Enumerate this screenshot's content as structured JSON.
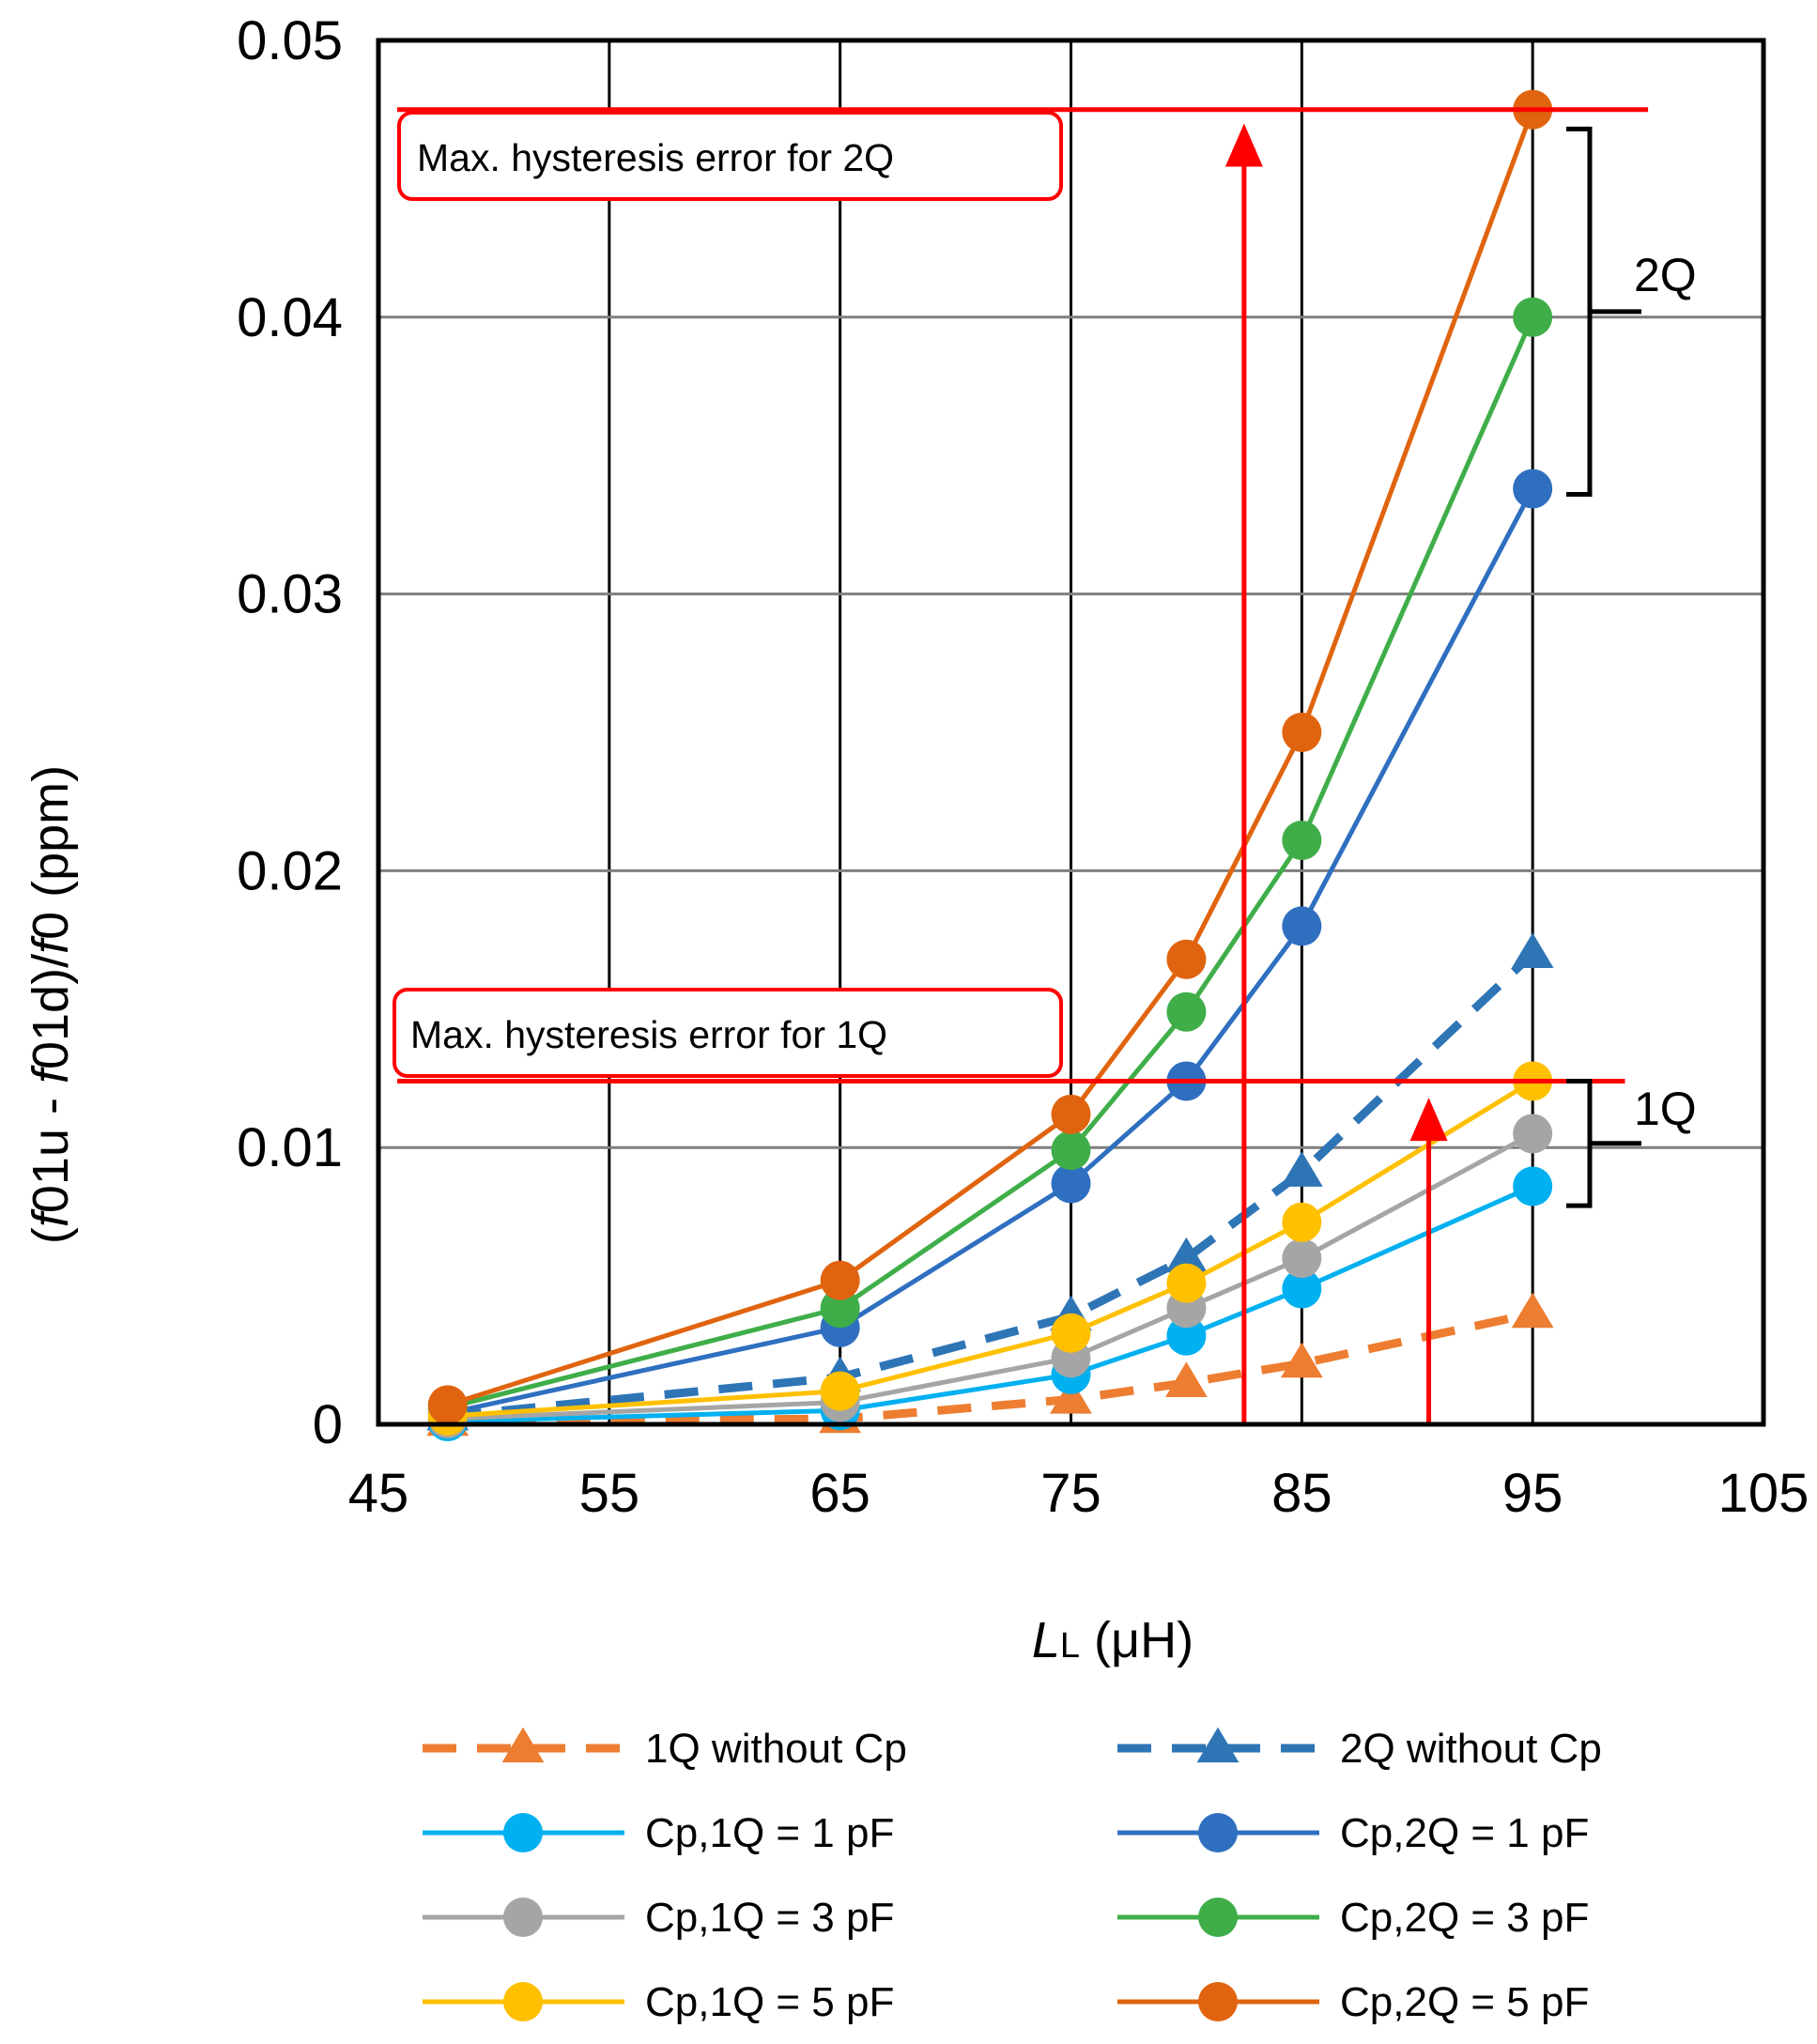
{
  "chart_data": {
    "type": "line",
    "title": "",
    "xlabel": {
      "main": "L",
      "sub": "L",
      "unit": " (μH)"
    },
    "ylabel": {
      "p1": "(",
      "f1": "f",
      "p2": "01u - ",
      "f2": "f",
      "p3": "01d)/",
      "f3": "f",
      "p4": "0 (ppm)"
    },
    "xlim": [
      45,
      105
    ],
    "ylim": [
      0,
      0.05
    ],
    "x_ticks": [
      45,
      55,
      65,
      75,
      85,
      95,
      105
    ],
    "x_tick_labels": [
      "45",
      "55",
      "65",
      "75",
      "85",
      "95",
      "105"
    ],
    "y_ticks": [
      0,
      0.01,
      0.02,
      0.03,
      0.04,
      0.05
    ],
    "y_tick_labels": [
      "0",
      "0.01",
      "0.02",
      "0.03",
      "0.04",
      "0.05"
    ],
    "x_gridlines": [
      55,
      65,
      75,
      85,
      95
    ],
    "y_gridlines": [
      0.01,
      0.02,
      0.03,
      0.04
    ],
    "series": [
      {
        "name": "1Q without Cp",
        "color": "#ED7D31",
        "marker": "triangle",
        "dashed": true,
        "x": [
          48,
          65,
          75,
          80,
          85,
          95
        ],
        "y": [
          0.0001,
          0.0002,
          0.0009,
          0.0015,
          0.0022,
          0.004
        ]
      },
      {
        "name": "2Q without Cp",
        "color": "#2E75B6",
        "marker": "triangle",
        "dashed": true,
        "x": [
          48,
          65,
          75,
          80,
          85,
          95
        ],
        "y": [
          0.0003,
          0.0017,
          0.0039,
          0.006,
          0.0091,
          0.017
        ]
      },
      {
        "name": "Cp,1Q = 1 pF",
        "color": "#00B0F0",
        "marker": "circle",
        "dashed": false,
        "x": [
          48,
          65,
          75,
          80,
          85,
          95
        ],
        "y": [
          0.0001,
          0.0005,
          0.0018,
          0.0032,
          0.0049,
          0.0086
        ]
      },
      {
        "name": "Cp,2Q = 1 pF",
        "color": "#2F6FC0",
        "marker": "circle",
        "dashed": false,
        "x": [
          48,
          65,
          75,
          80,
          85,
          95
        ],
        "y": [
          0.0004,
          0.0035,
          0.0087,
          0.0124,
          0.018,
          0.0338
        ]
      },
      {
        "name": "Cp,1Q = 3 pF",
        "color": "#A5A5A5",
        "marker": "circle",
        "dashed": false,
        "x": [
          48,
          65,
          75,
          80,
          85,
          95
        ],
        "y": [
          0.0002,
          0.0008,
          0.0024,
          0.0042,
          0.006,
          0.0105
        ]
      },
      {
        "name": "Cp,2Q = 3 pF",
        "color": "#3FAE49",
        "marker": "circle",
        "dashed": false,
        "x": [
          48,
          65,
          75,
          80,
          85,
          95
        ],
        "y": [
          0.0006,
          0.0042,
          0.0099,
          0.0149,
          0.0211,
          0.04
        ]
      },
      {
        "name": "Cp,1Q = 5 pF",
        "color": "#FFC000",
        "marker": "circle",
        "dashed": false,
        "x": [
          48,
          65,
          75,
          80,
          85,
          95
        ],
        "y": [
          0.0003,
          0.0012,
          0.0033,
          0.0051,
          0.0073,
          0.0124
        ]
      },
      {
        "name": "Cp,2Q = 5 pF",
        "color": "#E0640F",
        "marker": "circle",
        "dashed": false,
        "x": [
          48,
          65,
          75,
          80,
          85,
          95
        ],
        "y": [
          0.0007,
          0.0052,
          0.0112,
          0.0168,
          0.025,
          0.0475
        ]
      }
    ],
    "annotations": {
      "color": "#FF0000",
      "lines": [
        {
          "label": "Max. hysteresis error for 2Q",
          "y": 0.0475,
          "x_end": 100,
          "arrow_x": 82.5,
          "arrow_y_from": 0,
          "arrow_y_to": 0.047
        },
        {
          "label": "Max. hysteresis error for 1Q",
          "y": 0.0124,
          "x_end": 99,
          "arrow_x": 90.5,
          "arrow_y_from": 0,
          "arrow_y_to": 0.0118
        }
      ],
      "brackets": [
        {
          "label": "2Q",
          "y_top": 0.0468,
          "y_bottom": 0.0336
        },
        {
          "label": "1Q",
          "y_top": 0.0124,
          "y_bottom": 0.0079
        }
      ]
    },
    "legend": {
      "placement": "bottom",
      "columns": [
        [
          "1Q without Cp",
          "Cp,1Q = 1 pF",
          "Cp,1Q = 3 pF",
          "Cp,1Q = 5 pF"
        ],
        [
          "2Q without Cp",
          "Cp,2Q = 1 pF",
          "Cp,2Q = 3 pF",
          "Cp,2Q = 5 pF"
        ]
      ]
    }
  }
}
